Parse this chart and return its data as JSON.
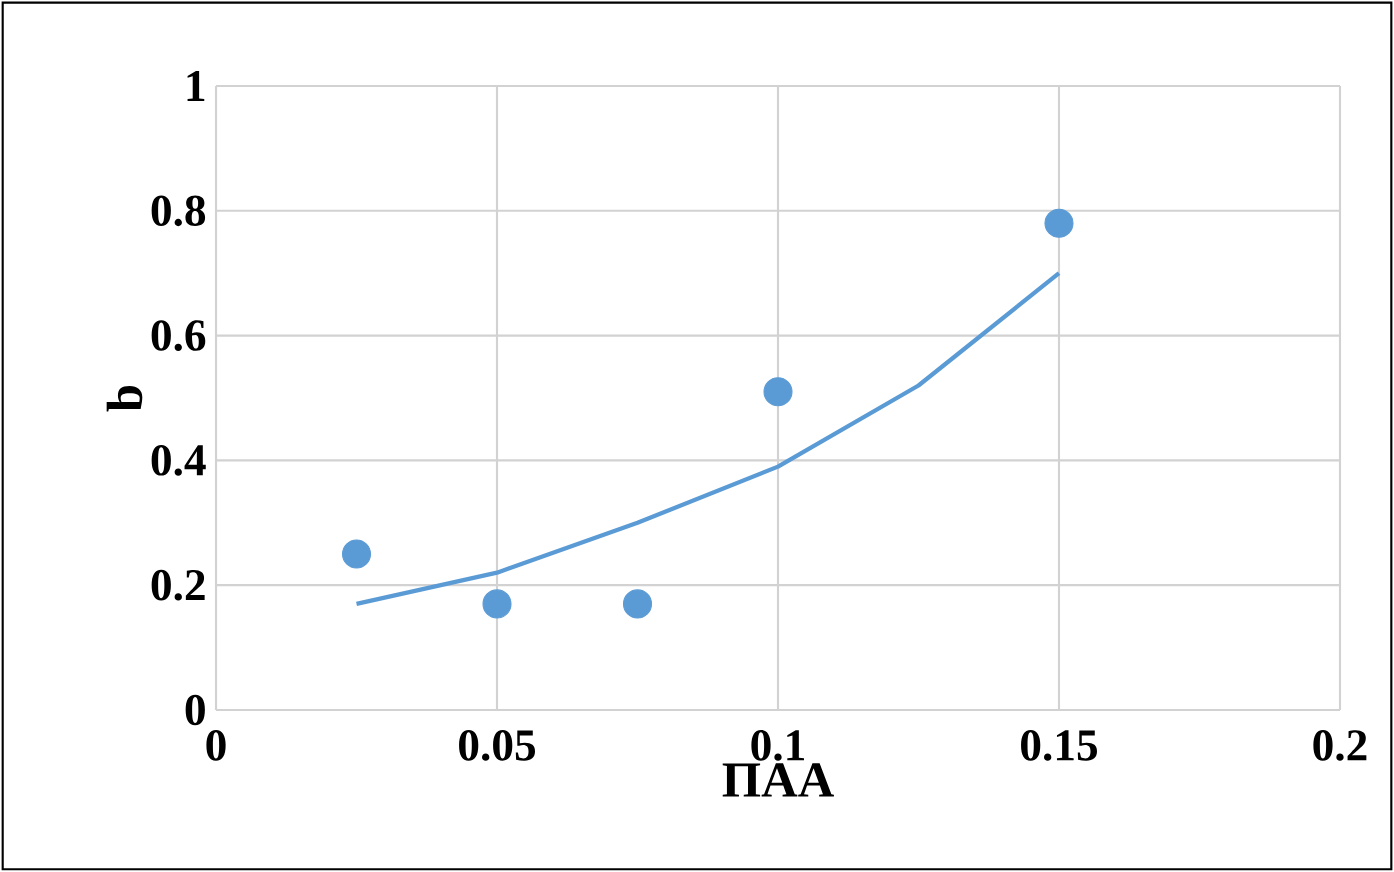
{
  "chart_data": {
    "type": "scatter",
    "xlabel": "ПАА",
    "ylabel": "b",
    "xlim": [
      0,
      0.2
    ],
    "ylim": [
      0,
      1
    ],
    "xticks": [
      0,
      0.05,
      0.1,
      0.15,
      0.2
    ],
    "yticks": [
      0,
      0.2,
      0.4,
      0.6,
      0.8,
      1
    ],
    "grid": true,
    "marker": "circle",
    "series": [
      {
        "color": "#5b9bd5",
        "x": [
          0.025,
          0.05,
          0.075,
          0.1,
          0.15
        ],
        "values": [
          0.25,
          0.17,
          0.17,
          0.51,
          0.78
        ]
      },
      {
        "type": "line",
        "color": "#5b9bd5",
        "marker": "none",
        "x": [
          0.025,
          0.05,
          0.075,
          0.1,
          0.125,
          0.15
        ],
        "values": [
          0.17,
          0.22,
          0.3,
          0.39,
          0.52,
          0.7
        ]
      }
    ]
  }
}
